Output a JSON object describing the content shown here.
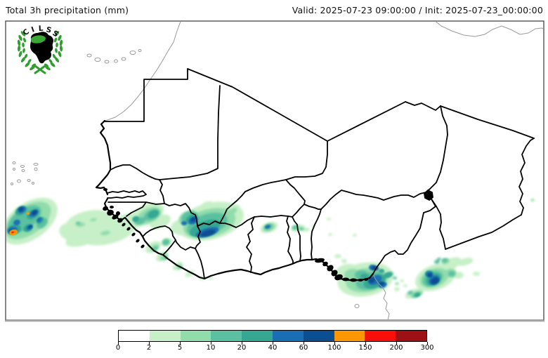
{
  "header": {
    "title": "Total 3h precipitation (mm)",
    "valid_init": "Valid: 2025-07-23 09:00:00 / Init: 2025-07-23_00:00:00"
  },
  "logo": {
    "name": "CILSS",
    "letters": [
      "C",
      "I",
      "L",
      "S",
      "S"
    ],
    "wreath_color": "#2f9e2f",
    "africa_color": "#000000",
    "sahel_patch_color": "#3aa835"
  },
  "map": {
    "region_shown": "West Africa",
    "member_border_color": "#000000",
    "neighbor_border_color": "#9a9a9a",
    "frame_color": "#444444",
    "background_color": "#ffffff"
  },
  "colorbar": {
    "boundaries_mm": [
      0,
      2,
      5,
      10,
      20,
      40,
      60,
      100,
      150,
      200,
      300
    ],
    "labels": [
      "0",
      "2",
      "5",
      "10",
      "20",
      "40",
      "60",
      "100",
      "150",
      "200",
      "300"
    ],
    "colors": [
      "#ffffff",
      "#c7f0c8",
      "#90dcab",
      "#5ac0a0",
      "#35a793",
      "#1a6fb4",
      "#0b4e92",
      "#ff9800",
      "#f90f0a",
      "#9c1016"
    ]
  }
}
